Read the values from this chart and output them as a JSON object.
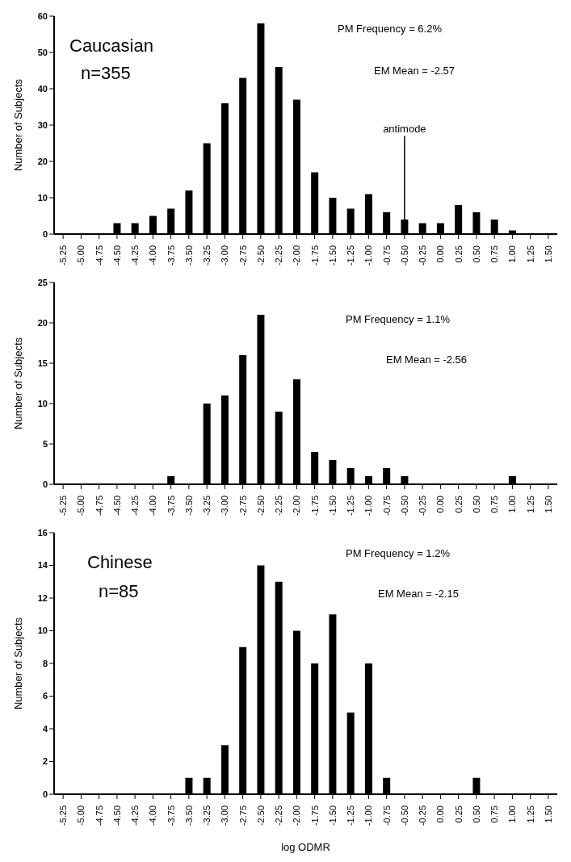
{
  "chart_data": [
    {
      "type": "bar",
      "ylabel": "Number of Subjects",
      "categories": [
        "-5.25",
        "-5.00",
        "-4.75",
        "-4.50",
        "-4.25",
        "-4.00",
        "-3.75",
        "-3.50",
        "-3.25",
        "-3.00",
        "-2.75",
        "-2.50",
        "-2.25",
        "-2.00",
        "-1.75",
        "-1.50",
        "-1.25",
        "-1.00",
        "-0.75",
        "-0.50",
        "-0.25",
        "0.00",
        "0.25",
        "0.50",
        "0.75",
        "1.00",
        "1.25",
        "1.50"
      ],
      "values": [
        0,
        0,
        0,
        3,
        3,
        5,
        7,
        12,
        25,
        36,
        43,
        58,
        46,
        37,
        17,
        10,
        7,
        11,
        6,
        4,
        3,
        3,
        8,
        6,
        4,
        1,
        0,
        0
      ],
      "color": "#000000",
      "ylim": [
        0,
        60
      ],
      "yticks": [
        0,
        10,
        20,
        30,
        40,
        50,
        60
      ],
      "grid": false,
      "annotations": [
        "Caucasian",
        "n=355",
        "PM Frequency = 6.2%",
        "EM Mean = -2.57"
      ],
      "ref_lines": [
        {
          "axis": "x",
          "value": "-0.50",
          "label": "antimode"
        }
      ]
    },
    {
      "type": "bar",
      "ylabel": "Number of Subjects",
      "categories": [
        "-5.25",
        "-5.00",
        "-4.75",
        "-4.50",
        "-4.25",
        "-4.00",
        "-3.75",
        "-3.50",
        "-3.25",
        "-3.00",
        "-2.75",
        "-2.50",
        "-2.25",
        "-2.00",
        "-1.75",
        "-1.50",
        "-1.25",
        "-1.00",
        "-0.75",
        "-0.50",
        "-0.25",
        "0.00",
        "0.25",
        "0.50",
        "0.75",
        "1.00",
        "1.25",
        "1.50"
      ],
      "values": [
        0,
        0,
        0,
        0,
        0,
        0,
        1,
        0,
        10,
        11,
        16,
        21,
        9,
        13,
        4,
        3,
        2,
        1,
        2,
        1,
        0,
        0,
        0,
        0,
        0,
        1,
        0,
        0
      ],
      "color": "#000000",
      "ylim": [
        0,
        25
      ],
      "yticks": [
        0,
        5,
        10,
        15,
        20,
        25
      ],
      "grid": false,
      "annotations": [
        "PM Frequency = 1.1%",
        "EM Mean = -2.56"
      ]
    },
    {
      "type": "bar",
      "xlabel": "log ODMR",
      "ylabel": "Number of Subjects",
      "categories": [
        "-5.25",
        "-5.00",
        "-4.75",
        "-4.50",
        "-4.25",
        "-4.00",
        "-3.75",
        "-3.50",
        "-3.25",
        "-3.00",
        "-2.75",
        "-2.50",
        "-2.25",
        "-2.00",
        "-1.75",
        "-1.50",
        "-1.25",
        "-1.00",
        "-0.75",
        "-0.50",
        "-0.25",
        "0.00",
        "0.25",
        "0.50",
        "0.75",
        "1.00",
        "1.25",
        "1.50"
      ],
      "values": [
        0,
        0,
        0,
        0,
        0,
        0,
        0,
        1,
        1,
        3,
        9,
        14,
        13,
        10,
        8,
        11,
        5,
        8,
        1,
        0,
        0,
        0,
        0,
        1,
        0,
        0,
        0,
        0
      ],
      "color": "#000000",
      "ylim": [
        0,
        16
      ],
      "yticks": [
        0,
        2,
        4,
        6,
        8,
        10,
        12,
        14,
        16
      ],
      "grid": false,
      "annotations": [
        "Chinese",
        "n=85",
        "PM Frequency = 1.2%",
        "EM Mean = -2.15"
      ]
    }
  ]
}
